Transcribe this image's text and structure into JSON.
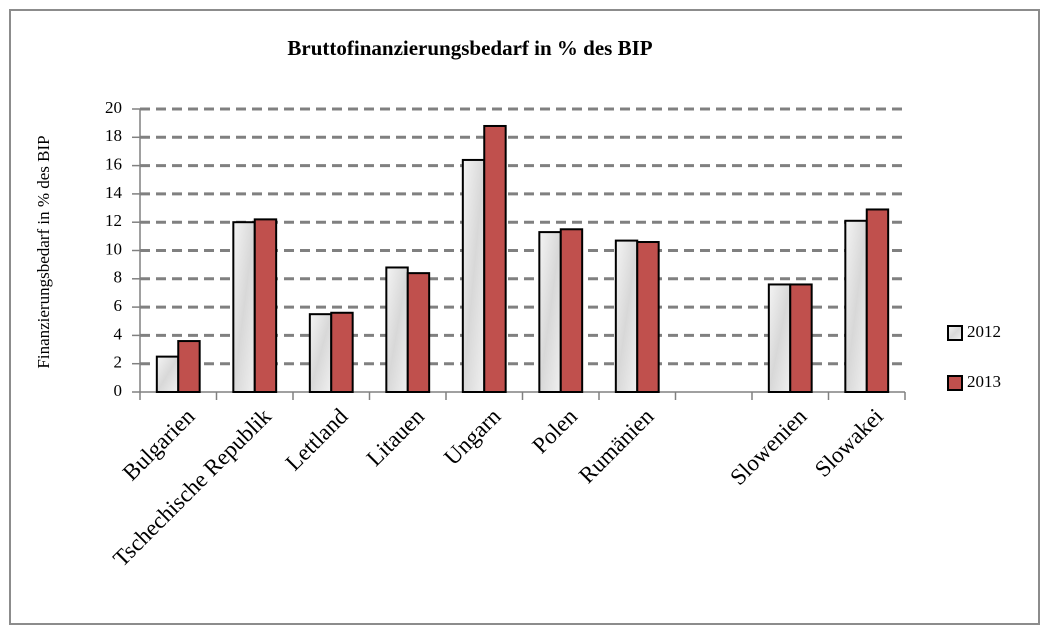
{
  "chart_data": {
    "type": "bar",
    "title": "Bruttofinanzierungsbedarf in % des BIP",
    "y_label": "Finanzierungsbedarf in % des BIP",
    "categories": [
      "Bulgarien",
      "Tschechische Republik",
      "Lettland",
      "Litauen",
      "Ungarn",
      "Polen",
      "Rumänien",
      null,
      "Slowenien",
      "Slowakei"
    ],
    "series": [
      {
        "name": "2012",
        "color": "#e6e6e6",
        "values": [
          2.5,
          12.0,
          5.5,
          8.8,
          16.4,
          11.3,
          10.7,
          null,
          7.6,
          12.1
        ]
      },
      {
        "name": "2013",
        "color": "#c0504d",
        "values": [
          3.6,
          12.2,
          5.6,
          8.4,
          18.8,
          11.5,
          10.6,
          null,
          7.6,
          12.9
        ]
      }
    ],
    "ylim": [
      0,
      20
    ],
    "yticks": [
      0,
      2,
      4,
      6,
      8,
      10,
      12,
      14,
      16,
      18,
      20
    ],
    "grid": true,
    "legend": "right"
  }
}
